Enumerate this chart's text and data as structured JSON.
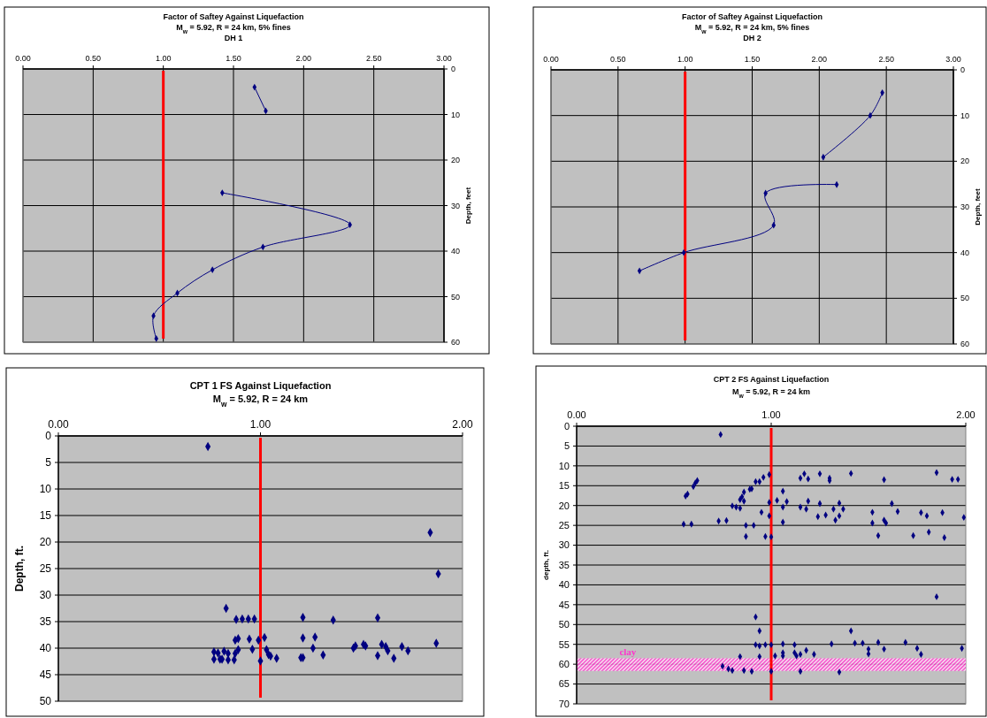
{
  "chart_data": [
    {
      "type": "line",
      "title": "Factor of Saftey Against Liquefaction",
      "subtitle": "M$_{w}$ = 5.92, R = 24 km, 5% fines\nDH 1",
      "ylabel": "Depth, feet",
      "xlim": [
        0,
        3
      ],
      "xticks": [
        {
          "value": 0,
          "label": "0.00"
        },
        {
          "value": 0.5,
          "label": "0.50"
        },
        {
          "value": 1,
          "label": "1.00"
        },
        {
          "value": 1.5,
          "label": "1.50"
        },
        {
          "value": 2,
          "label": "2.00"
        },
        {
          "value": 2.5,
          "label": "2.50"
        },
        {
          "value": 3,
          "label": "3.00"
        }
      ],
      "ylim": [
        60,
        0
      ],
      "yticks": [
        0,
        10,
        20,
        30,
        40,
        50,
        60
      ],
      "grid": true,
      "marker": "diamond",
      "series": [
        {
          "color": "#000080",
          "x": [
            1.65,
            1.73,
            null,
            1.42,
            2.33,
            1.71,
            1.35,
            1.1,
            0.93,
            0.95
          ],
          "values": [
            4,
            9.2,
            null,
            27.2,
            34.2,
            39.1,
            44.1,
            49.2,
            54.2,
            59.2
          ]
        }
      ],
      "ref_lines": [
        {
          "axis": "x",
          "value": 1,
          "color": "#ff0000"
        }
      ]
    },
    {
      "type": "line",
      "title": "Factor of Saftey Against Liquefaction",
      "subtitle": "M$_{w}$ = 5.92, R = 24 km, 5% fines\nDH 2",
      "ylabel": "Depth, feet",
      "xlim": [
        0,
        3
      ],
      "xticks": [
        {
          "value": 0,
          "label": "0.00"
        },
        {
          "value": 0.5,
          "label": "0.50"
        },
        {
          "value": 1,
          "label": "1.00"
        },
        {
          "value": 1.5,
          "label": "1.50"
        },
        {
          "value": 2,
          "label": "2.00"
        },
        {
          "value": 2.5,
          "label": "2.50"
        },
        {
          "value": 3,
          "label": "3.00"
        }
      ],
      "ylim": [
        60,
        0
      ],
      "yticks": [
        0,
        10,
        20,
        30,
        40,
        50,
        60
      ],
      "grid": true,
      "marker": "diamond",
      "series": [
        {
          "color": "#000080",
          "x": [
            2.47,
            2.38,
            2.03,
            null,
            2.13,
            1.6,
            1.66,
            0.99,
            0.66
          ],
          "values": [
            5,
            10,
            19.1,
            null,
            25.1,
            27,
            34,
            40,
            44
          ]
        }
      ],
      "ref_lines": [
        {
          "axis": "x",
          "value": 1,
          "color": "#ff0000"
        }
      ]
    },
    {
      "type": "scatter",
      "title": "CPT 1 FS Against Liquefaction",
      "subtitle": "M$_{w}$ = 5.92, R = 24 km",
      "ylabel": "Depth, ft.",
      "xlim": [
        0,
        2
      ],
      "xticks": [
        {
          "value": 0,
          "label": "0.00"
        },
        {
          "value": 1,
          "label": "1.00"
        },
        {
          "value": 2,
          "label": "2.00"
        }
      ],
      "ylim": [
        50,
        0
      ],
      "yticks": [
        0,
        5,
        10,
        15,
        20,
        25,
        30,
        35,
        40,
        45,
        50
      ],
      "grid": "y",
      "marker": "diamond",
      "series": [
        {
          "color": "#000080",
          "x": [
            0.74,
            1.84,
            1.88,
            0.83,
            0.88,
            0.91,
            0.94,
            0.97,
            1.21,
            1.36,
            1.58,
            0.875,
            0.89,
            0.945,
            0.99,
            1.02,
            1.21,
            1.27,
            1.87,
            1.47,
            1.51,
            1.52,
            1.6,
            1.62,
            1.7,
            1.63,
            1.73,
            1.46,
            1.26,
            0.96,
            0.89,
            1.03,
            0.77,
            0.79,
            0.82,
            0.84,
            0.875,
            1.04,
            1.05,
            1.31,
            1.58,
            0.77,
            0.8,
            0.81,
            0.84,
            0.87,
            1.0,
            1.08,
            1.2,
            1.21,
            1.66
          ],
          "values": [
            2,
            18.2,
            26,
            32.5,
            34.6,
            34.5,
            34.5,
            34.5,
            34.2,
            34.7,
            34.3,
            38.5,
            38.2,
            38.3,
            38.5,
            38,
            38.1,
            37.9,
            39.1,
            39.6,
            39.3,
            39.6,
            39.3,
            39.7,
            39.7,
            40.5,
            40.5,
            40,
            40,
            40.2,
            40.3,
            40.3,
            40.7,
            40.9,
            40.6,
            41,
            41,
            41.2,
            41.5,
            41.3,
            41.4,
            42.1,
            42.1,
            42.1,
            42.2,
            42.2,
            42.4,
            41.9,
            41.8,
            41.8,
            41.9
          ]
        }
      ],
      "ref_lines": [
        {
          "axis": "x",
          "value": 1,
          "color": "#ff0000"
        }
      ]
    },
    {
      "type": "scatter",
      "title": "CPT 2 FS Against Liquefaction",
      "subtitle": "M$_{w}$ = 5.92, R = 24 km",
      "ylabel": "depth, ft.",
      "xlim": [
        0,
        2
      ],
      "xticks": [
        {
          "value": 0,
          "label": "0.00"
        },
        {
          "value": 1,
          "label": "1.00"
        },
        {
          "value": 2,
          "label": "2.00"
        }
      ],
      "ylim": [
        70,
        0
      ],
      "yticks": [
        0,
        5,
        10,
        15,
        20,
        25,
        30,
        35,
        40,
        45,
        50,
        55,
        60,
        65,
        70
      ],
      "grid": "y",
      "marker": "diamond",
      "series": [
        {
          "color": "#000080",
          "x": [
            0.74,
            1.85,
            1.41,
            1.25,
            1.17,
            0.96,
            0.99,
            1.15,
            1.19,
            1.3,
            1.3,
            1.58,
            1.93,
            1.96,
            0.62,
            0.61,
            0.6,
            0.92,
            0.94,
            0.57,
            0.56,
            1.06,
            0.86,
            0.89,
            0.9,
            0.85,
            0.84,
            0.86,
            0.8,
            0.82,
            0.84,
            0.99,
            1.03,
            1.08,
            1.19,
            1.25,
            1.35,
            1.62,
            1.06,
            1.15,
            1.18,
            1.32,
            1.37,
            1.52,
            1.65,
            1.88,
            1.77,
            0.95,
            0.99,
            1.24,
            1.28,
            1.35,
            1.8,
            1.58,
            1.99,
            0.55,
            0.59,
            0.73,
            0.77,
            0.87,
            0.91,
            1.06,
            1.33,
            1.52,
            1.59,
            1.81,
            0.87,
            0.97,
            1.0,
            1.55,
            1.73,
            1.89,
            1.85,
            0.92,
            0.94,
            1.41,
            0.92,
            0.94,
            0.97,
            1.0,
            1.06,
            1.12,
            1.31,
            1.43,
            1.47,
            1.55,
            1.69,
            1.98,
            1.06,
            1.06,
            1.12,
            1.13,
            1.15,
            1.18,
            1.22,
            1.5,
            1.58,
            1.75,
            1.77,
            1.5,
            0.84,
            0.94,
            1.02,
            0.75,
            0.78,
            0.8,
            0.86,
            0.9,
            1.0,
            1.15,
            1.35
          ],
          "values": [
            2.1,
            11.7,
            11.9,
            12,
            12,
            12.9,
            12.2,
            13.1,
            13.3,
            13.1,
            13.7,
            13.5,
            13.4,
            13.4,
            13.7,
            14.3,
            15.2,
            14,
            14,
            17.1,
            17.6,
            16.4,
            16.6,
            15.9,
            15.8,
            17.8,
            18.5,
            18.9,
            20.1,
            20.4,
            20.7,
            19.2,
            18.7,
            19,
            18.9,
            19.5,
            19.4,
            19.5,
            20.4,
            20.4,
            20.9,
            20.9,
            20.9,
            21.7,
            21.5,
            21.8,
            21.8,
            21.7,
            22.6,
            22.8,
            22.4,
            22.6,
            22.6,
            23.7,
            23,
            24.7,
            24.7,
            23.9,
            23.8,
            25,
            25,
            24.2,
            23.7,
            24.4,
            24.4,
            26.7,
            27.8,
            27.8,
            27.9,
            27.6,
            27.6,
            28.1,
            43,
            48.1,
            51.6,
            51.6,
            55.1,
            55.4,
            55.1,
            55.1,
            54.9,
            55.1,
            54.9,
            54.7,
            54.7,
            54.5,
            54.5,
            56,
            57.1,
            57.9,
            57.1,
            57.9,
            57.5,
            56.5,
            57.5,
            56.2,
            56.2,
            56,
            57.5,
            57.4,
            58.1,
            58.1,
            57.9,
            60.5,
            61.2,
            61.6,
            61.6,
            61.8,
            61.8,
            61.8,
            62
          ]
        }
      ],
      "ref_lines": [
        {
          "axis": "x",
          "value": 1,
          "color": "#ff0000"
        }
      ],
      "bands": [
        {
          "axis": "y",
          "from": 58.5,
          "to": 61.7,
          "label": "clay",
          "color": "#ff33cc"
        }
      ]
    }
  ]
}
